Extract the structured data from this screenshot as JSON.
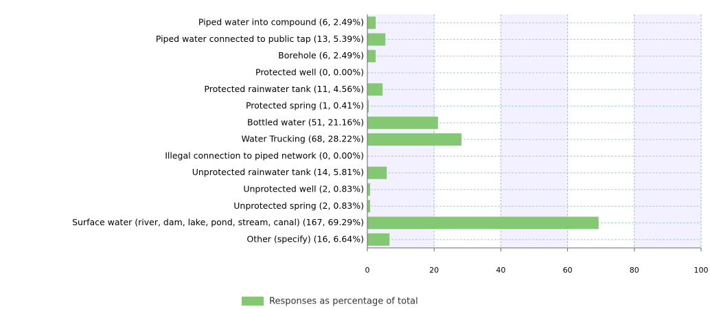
{
  "chart_data": {
    "type": "hbar",
    "categories": [
      "Piped water into compound (6, 2.49%)",
      "Piped water connected to public tap (13, 5.39%)",
      "Borehole (6, 2.49%)",
      "Protected well (0, 0.00%)",
      "Protected rainwater tank (11, 4.56%)",
      "Protected spring (1, 0.41%)",
      "Bottled water (51, 21.16%)",
      "Water Trucking (68, 28.22%)",
      "Illegal connection to piped network (0, 0.00%)",
      "Unprotected rainwater tank (14, 5.81%)",
      "Unprotected well (2, 0.83%)",
      "Unprotected spring (2, 0.83%)",
      "Surface water (river, dam, lake, pond, stream, canal) (167, 69.29%)",
      "Other (specify) (16, 6.64%)"
    ],
    "series": [
      {
        "name": "Responses as percentage of total",
        "color": "#85c874",
        "values": [
          2.49,
          5.39,
          2.49,
          0.0,
          4.56,
          0.41,
          21.16,
          28.22,
          0.0,
          5.81,
          0.83,
          0.83,
          69.29,
          6.64
        ]
      }
    ],
    "xlim": [
      0,
      100
    ],
    "xticks": [
      0,
      20,
      40,
      60,
      80,
      100
    ],
    "grid": true,
    "legend": "bottom"
  }
}
